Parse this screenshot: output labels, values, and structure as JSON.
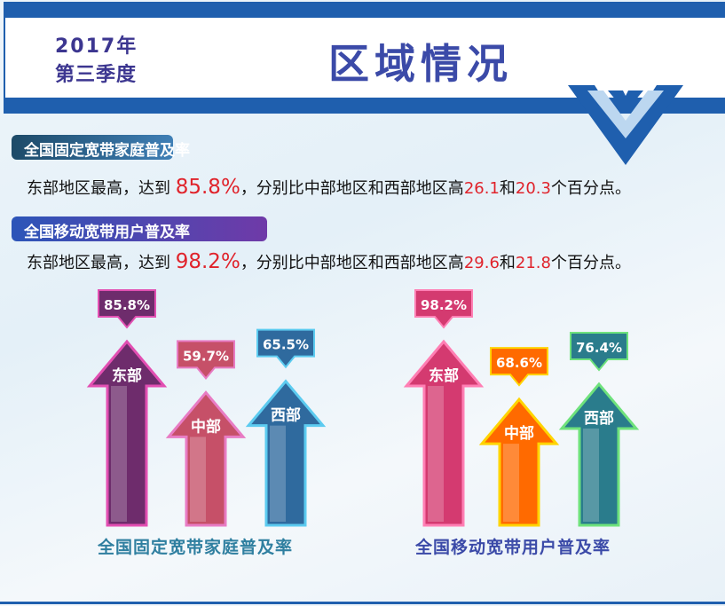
{
  "header": {
    "year": "2017年",
    "quarter": "第三季度",
    "title": "区域情况",
    "brand_color": "#1f5fae"
  },
  "section1": {
    "label": "全国固定宽带家庭普及率",
    "sentence": {
      "pre": "东部地区最高，达到 ",
      "value": "85.8%",
      "mid": "，分别比中部地区和西部地区高",
      "diff1": "26.1",
      "and": "和",
      "diff2": "20.3",
      "post": "个百分点。"
    }
  },
  "section2": {
    "label": "全国移动宽带用户普及率",
    "sentence": {
      "pre": "东部地区最高，达到 ",
      "value": "98.2%",
      "mid": "，分别比中部地区和西部地区高",
      "diff1": "29.6",
      "and": "和",
      "diff2": "21.8",
      "post": "个百分点。"
    }
  },
  "chart_data": [
    {
      "type": "bar",
      "title": "全国固定宽带家庭普及率",
      "categories": [
        "东部",
        "中部",
        "西部"
      ],
      "values": [
        85.8,
        59.7,
        65.5
      ],
      "value_labels": [
        "85.8%",
        "59.7%",
        "65.5%"
      ],
      "colors": [
        "#6e2c6c",
        "#c65068",
        "#2f6a9e"
      ],
      "border_colors": [
        "#e24fb2",
        "#e87cc4",
        "#5ccbf0"
      ]
    },
    {
      "type": "bar",
      "title": "全国移动宽带用户普及率",
      "categories": [
        "东部",
        "中部",
        "西部"
      ],
      "values": [
        98.2,
        68.6,
        76.4
      ],
      "value_labels": [
        "98.2%",
        "68.6%",
        "76.4%"
      ],
      "colors": [
        "#d43a70",
        "#ff6a00",
        "#2a7c8c"
      ],
      "border_colors": [
        "#ff7fb4",
        "#ffd400",
        "#6fe27c"
      ]
    }
  ]
}
